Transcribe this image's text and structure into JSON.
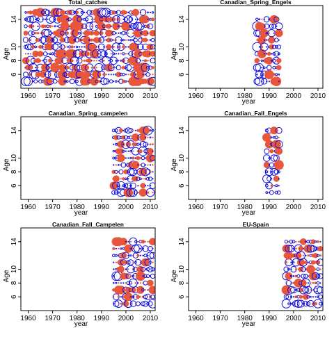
{
  "figure": {
    "xlabel": "year",
    "ylabel": "Age"
  },
  "colors": {
    "positive": "#e8563b",
    "negative": "#1010e0",
    "axis": "#000000"
  },
  "chart_data": [
    {
      "type": "scatter",
      "title": "Total_catches",
      "xlabel": "year",
      "ylabel": "Age",
      "xlim": [
        1957,
        2012
      ],
      "ylim": [
        4,
        16
      ],
      "xticks": [
        "1960",
        "1970",
        "1980",
        "1990",
        "2000",
        "2010"
      ],
      "yticks": [
        "6",
        "8",
        "10",
        "14"
      ],
      "years": [
        1959,
        2011
      ],
      "ages": [
        5,
        15
      ]
    },
    {
      "type": "scatter",
      "title": "Canadian_Spring_Engels",
      "xlabel": "year",
      "ylabel": "Age",
      "xlim": [
        1957,
        2012
      ],
      "ylim": [
        4,
        16
      ],
      "xticks": [
        "1960",
        "1970",
        "1980",
        "1990",
        "2000",
        "2010"
      ],
      "yticks": [
        "6",
        "8",
        "10",
        "14"
      ],
      "years": [
        1985,
        1994
      ],
      "ages": [
        5,
        14
      ]
    },
    {
      "type": "scatter",
      "title": "Canadian_Spring_campelen",
      "xlabel": "year",
      "ylabel": "Age",
      "xlim": [
        1957,
        2012
      ],
      "ylim": [
        4,
        16
      ],
      "xticks": [
        "1960",
        "1970",
        "1980",
        "1990",
        "2000",
        "2010"
      ],
      "yticks": [
        "6",
        "8",
        "10",
        "14"
      ],
      "years": [
        1995,
        2011
      ],
      "ages": [
        5,
        14
      ]
    },
    {
      "type": "scatter",
      "title": "Canadian_Fall_Engels",
      "xlabel": "year",
      "ylabel": "Age",
      "xlim": [
        1957,
        2012
      ],
      "ylim": [
        4,
        16
      ],
      "xticks": [
        "1960",
        "1970",
        "1980",
        "1990",
        "2000",
        "2010"
      ],
      "yticks": [
        "6",
        "8",
        "10",
        "14"
      ],
      "years": [
        1989,
        1994
      ],
      "ages": [
        5,
        14
      ]
    },
    {
      "type": "scatter",
      "title": "Canadian_Fall_Campelen",
      "xlabel": "year",
      "ylabel": "Age",
      "xlim": [
        1957,
        2012
      ],
      "ylim": [
        4,
        16
      ],
      "xticks": [
        "1960",
        "1970",
        "1980",
        "1990",
        "2000",
        "2010"
      ],
      "yticks": [
        "6",
        "8",
        "10",
        "14"
      ],
      "years": [
        1995,
        2011
      ],
      "ages": [
        5,
        14
      ]
    },
    {
      "type": "scatter",
      "title": "EU-Spain",
      "xlabel": "year",
      "ylabel": "Age",
      "xlim": [
        1957,
        2012
      ],
      "ylim": [
        4,
        16
      ],
      "xticks": [
        "1960",
        "1970",
        "1980",
        "1990",
        "2000",
        "2010"
      ],
      "yticks": [
        "6",
        "8",
        "10",
        "14"
      ],
      "years": [
        1997,
        2011
      ],
      "ages": [
        5,
        14
      ]
    }
  ]
}
